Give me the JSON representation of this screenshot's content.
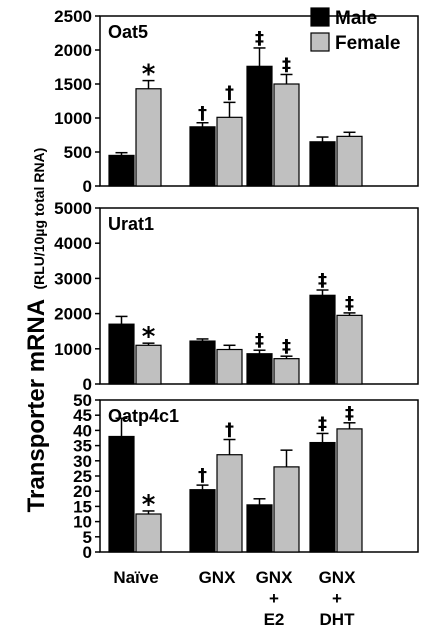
{
  "chart_data": {
    "type": "bar",
    "ylabel": "Transporter mRNA",
    "ylabel_unit": "(RLU/10µg total RNA)",
    "categories": [
      {
        "lines": [
          "Naïve"
        ]
      },
      {
        "lines": [
          "GNX"
        ]
      },
      {
        "lines": [
          "GNX",
          "+",
          "E2"
        ]
      },
      {
        "lines": [
          "GNX",
          "+",
          "DHT"
        ]
      }
    ],
    "legend": {
      "position": "top-right",
      "entries": [
        {
          "name": "Male",
          "color": "#000000"
        },
        {
          "name": "Female",
          "color": "#c0c0c0"
        }
      ]
    },
    "panels": [
      {
        "title": "Oat5",
        "ylim": [
          0,
          2500
        ],
        "yticks": [
          "0",
          "500",
          "1000",
          "1500",
          "2000",
          "2500"
        ],
        "series": [
          {
            "name": "Male",
            "values": [
              450,
              870,
              1760,
              650
            ],
            "errors": [
              40,
              60,
              270,
              70
            ],
            "marks": [
              "",
              "†",
              "‡",
              ""
            ]
          },
          {
            "name": "Female",
            "values": [
              1430,
              1010,
              1500,
              730
            ],
            "errors": [
              120,
              220,
              140,
              60
            ],
            "marks": [
              "*",
              "†",
              "‡",
              ""
            ]
          }
        ]
      },
      {
        "title": "Urat1",
        "ylim": [
          0,
          5000
        ],
        "yticks": [
          "0",
          "1000",
          "2000",
          "3000",
          "4000",
          "5000"
        ],
        "series": [
          {
            "name": "Male",
            "values": [
              1700,
              1220,
              860,
              2520
            ],
            "errors": [
              220,
              60,
              100,
              150
            ],
            "marks": [
              "",
              "",
              "‡",
              "‡"
            ]
          },
          {
            "name": "Female",
            "values": [
              1100,
              980,
              720,
              1950
            ],
            "errors": [
              60,
              120,
              70,
              70
            ],
            "marks": [
              "*",
              "",
              "‡",
              "‡"
            ]
          }
        ]
      },
      {
        "title": "Oatp4c1",
        "ylim": [
          0,
          50
        ],
        "yticks": [
          "0",
          "5",
          "10",
          "15",
          "20",
          "25",
          "30",
          "35",
          "40",
          "45",
          "50"
        ],
        "series": [
          {
            "name": "Male",
            "values": [
              38,
              20.5,
              15.5,
              36
            ],
            "errors": [
              6,
              1.5,
              2,
              3
            ],
            "marks": [
              "",
              "†",
              "",
              "‡"
            ]
          },
          {
            "name": "Female",
            "values": [
              12.5,
              32,
              28,
              40.5
            ],
            "errors": [
              1,
              5,
              5.5,
              2
            ],
            "marks": [
              "*",
              "†",
              "",
              "‡"
            ]
          }
        ]
      }
    ]
  }
}
